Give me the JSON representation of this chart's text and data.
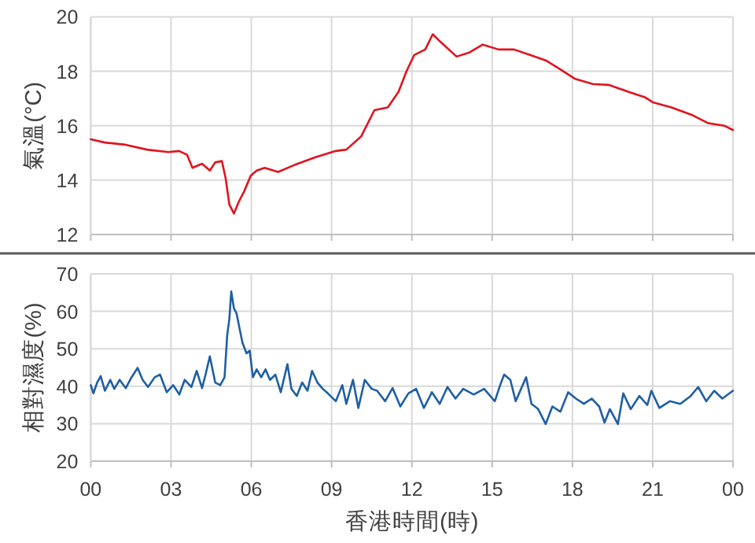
{
  "chart_data": [
    {
      "type": "line",
      "ylabel": "氣溫(°C)",
      "xlim": [
        0,
        24
      ],
      "xticks": [
        0,
        3,
        6,
        9,
        12,
        15,
        18,
        21,
        24
      ],
      "ylim": [
        12,
        20
      ],
      "yticks": [
        12,
        14,
        16,
        18,
        20
      ],
      "grid": true,
      "tick_labels": "y",
      "series": [
        {
          "color": "#e0141e",
          "x": [
            0,
            0.53,
            1.3,
            2.1,
            2.9,
            3.3,
            3.6,
            3.8,
            4.16,
            4.45,
            4.65,
            4.9,
            5.04,
            5.18,
            5.35,
            5.53,
            5.73,
            5.98,
            6.2,
            6.5,
            7.0,
            7.6,
            8.4,
            9.16,
            9.55,
            10.1,
            10.6,
            11.1,
            11.5,
            11.8,
            12.09,
            12.5,
            12.78,
            13.08,
            13.67,
            14.15,
            14.65,
            15.24,
            15.82,
            16.41,
            17.0,
            17.5,
            18.08,
            18.76,
            19.35,
            20.1,
            20.7,
            21.0,
            21.7,
            22.5,
            23.08,
            23.67,
            24
          ],
          "values": [
            15.5,
            15.38,
            15.3,
            15.12,
            15.03,
            15.07,
            14.93,
            14.45,
            14.6,
            14.35,
            14.65,
            14.7,
            14.07,
            13.1,
            12.77,
            13.2,
            13.58,
            14.16,
            14.35,
            14.45,
            14.3,
            14.55,
            14.84,
            15.07,
            15.12,
            15.6,
            16.57,
            16.67,
            17.24,
            18.0,
            18.6,
            18.8,
            19.36,
            19.07,
            18.54,
            18.69,
            18.98,
            18.8,
            18.8,
            18.6,
            18.4,
            18.1,
            17.73,
            17.53,
            17.5,
            17.24,
            17.05,
            16.86,
            16.67,
            16.38,
            16.09,
            16.0,
            15.84
          ]
        }
      ]
    },
    {
      "type": "line",
      "ylabel": "相對濕度(%)",
      "xlabel": "香港時間(時)",
      "xlim": [
        0,
        24
      ],
      "xticks": [
        {
          "value": 0,
          "label": "00"
        },
        {
          "value": 3,
          "label": "03"
        },
        {
          "value": 6,
          "label": "06"
        },
        {
          "value": 9,
          "label": "09"
        },
        {
          "value": 12,
          "label": "12"
        },
        {
          "value": 15,
          "label": "15"
        },
        {
          "value": 18,
          "label": "18"
        },
        {
          "value": 21,
          "label": "21"
        },
        {
          "value": 24,
          "label": "00"
        }
      ],
      "ylim": [
        20,
        70
      ],
      "yticks": [
        20,
        30,
        40,
        50,
        60,
        70
      ],
      "grid": true,
      "series": [
        {
          "color": "#1f5fa3",
          "x": [
            0,
            0.1,
            0.24,
            0.37,
            0.53,
            0.73,
            0.88,
            1.08,
            1.31,
            1.5,
            1.75,
            1.94,
            2.14,
            2.39,
            2.59,
            2.84,
            3.08,
            3.31,
            3.51,
            3.76,
            3.96,
            4.16,
            4.29,
            4.45,
            4.65,
            4.84,
            5.0,
            5.1,
            5.18,
            5.25,
            5.35,
            5.45,
            5.57,
            5.67,
            5.82,
            5.94,
            6.06,
            6.2,
            6.37,
            6.53,
            6.7,
            6.9,
            7.1,
            7.35,
            7.5,
            7.7,
            7.9,
            8.1,
            8.27,
            8.47,
            8.67,
            8.86,
            9.16,
            9.4,
            9.55,
            9.8,
            10.0,
            10.24,
            10.5,
            10.7,
            11.0,
            11.28,
            11.57,
            11.87,
            12.16,
            12.45,
            12.75,
            13.04,
            13.33,
            13.63,
            13.92,
            14.31,
            14.7,
            15.1,
            15.3,
            15.45,
            15.68,
            15.88,
            16.27,
            16.47,
            16.72,
            17.0,
            17.25,
            17.55,
            17.84,
            18.13,
            18.43,
            18.72,
            19.0,
            19.2,
            19.4,
            19.7,
            19.9,
            20.18,
            20.5,
            20.8,
            20.95,
            21.25,
            21.64,
            22.03,
            22.42,
            22.7,
            23.0,
            23.3,
            23.6,
            24
          ],
          "values": [
            40.3,
            38.1,
            41,
            42.7,
            38.8,
            41.7,
            39.3,
            41.7,
            39.5,
            42.1,
            44.9,
            41.7,
            39.8,
            42.4,
            43.1,
            38.4,
            40.3,
            37.8,
            41.7,
            39.8,
            44.1,
            39.5,
            43.1,
            48.0,
            41,
            40.3,
            42.4,
            53.7,
            58,
            65.3,
            60.8,
            59.4,
            55.1,
            51.6,
            48.8,
            49.5,
            42.4,
            44.5,
            42.4,
            44.5,
            41.7,
            43.1,
            38.4,
            45.9,
            39.3,
            37.4,
            41,
            38.8,
            44.1,
            41,
            39.3,
            38.1,
            36,
            40.3,
            35.3,
            41.7,
            34.2,
            41.7,
            39.3,
            38.8,
            36,
            39.5,
            34.6,
            38.1,
            39.3,
            34.2,
            38.4,
            35.3,
            39.8,
            36.7,
            39.3,
            37.8,
            39.3,
            36,
            40.3,
            43.1,
            41.7,
            36,
            42.4,
            35.3,
            33.9,
            29.9,
            34.6,
            33.2,
            38.4,
            36.7,
            35.3,
            36.7,
            34.6,
            30.3,
            33.9,
            29.9,
            38.1,
            33.9,
            37.4,
            35,
            38.8,
            34.2,
            36,
            35.3,
            37.4,
            39.8,
            36,
            38.8,
            36.7,
            38.8
          ]
        }
      ]
    }
  ]
}
